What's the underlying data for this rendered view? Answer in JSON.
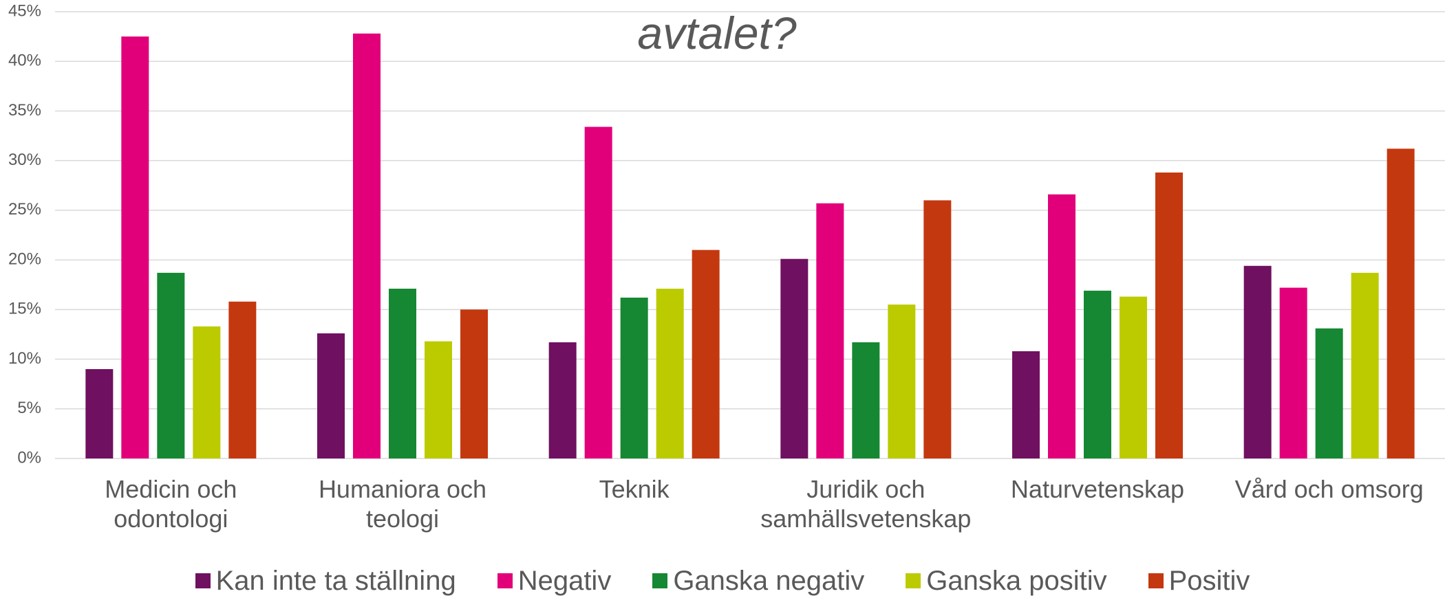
{
  "chart_data": {
    "type": "bar",
    "title": "avtalet?",
    "categories": [
      "Medicin och odontologi",
      "Humaniora och teologi",
      "Teknik",
      "Juridik och samhällsvetenskap",
      "Naturvetenskap",
      "Vård och omsorg"
    ],
    "series": [
      {
        "name": "Kan inte ta ställning",
        "color": "#701060",
        "values": [
          9.0,
          12.6,
          11.7,
          20.1,
          10.8,
          19.4
        ]
      },
      {
        "name": "Negativ",
        "color": "#e2007a",
        "values": [
          42.5,
          42.8,
          33.4,
          25.7,
          26.6,
          17.2
        ]
      },
      {
        "name": "Ganska negativ",
        "color": "#168732",
        "values": [
          18.7,
          17.1,
          16.2,
          11.7,
          16.9,
          13.1
        ]
      },
      {
        "name": "Ganska positiv",
        "color": "#bccb00",
        "values": [
          13.3,
          11.8,
          17.1,
          15.5,
          16.3,
          18.7
        ]
      },
      {
        "name": "Positiv",
        "color": "#c4380f",
        "values": [
          15.8,
          15.0,
          21.0,
          26.0,
          28.8,
          31.2
        ]
      }
    ],
    "ylim": [
      0,
      45
    ],
    "yticks": [
      {
        "value": 0,
        "label": "0%"
      },
      {
        "value": 5,
        "label": "5%"
      },
      {
        "value": 10,
        "label": "10%"
      },
      {
        "value": 15,
        "label": "15%"
      },
      {
        "value": 20,
        "label": "20%"
      },
      {
        "value": 25,
        "label": "25%"
      },
      {
        "value": 30,
        "label": "30%"
      },
      {
        "value": 35,
        "label": "35%"
      },
      {
        "value": 40,
        "label": "40%"
      },
      {
        "value": 45,
        "label": "45%"
      }
    ],
    "grid": true,
    "legend": "bottom"
  }
}
